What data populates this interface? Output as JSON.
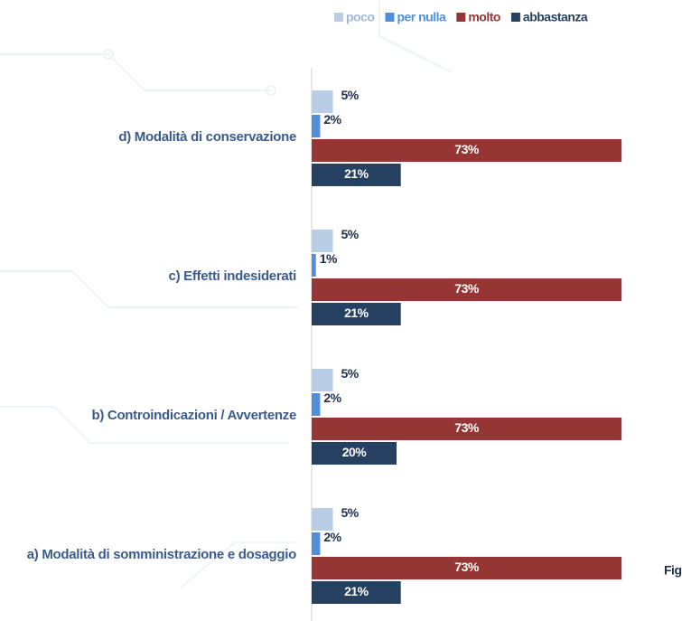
{
  "chart_data": {
    "type": "bar",
    "orientation": "horizontal",
    "categories": [
      "d) Modalità di conservazione",
      "c) Effetti indesiderati",
      "b) Controindicazioni /  Avvertenze",
      "a) Modalità di somministrazione e dosaggio"
    ],
    "series": [
      {
        "name": "poco",
        "color": "#b9cde5",
        "values": [
          5,
          5,
          5,
          5
        ],
        "value_labels": [
          "5%",
          "5%",
          "5%",
          "5%"
        ]
      },
      {
        "name": "per nulla",
        "color": "#4f8fdc",
        "values": [
          2,
          1,
          2,
          2
        ],
        "value_labels": [
          "2%",
          "1%",
          "2%",
          "2%"
        ]
      },
      {
        "name": "molto",
        "color": "#963634",
        "values": [
          73,
          73,
          73,
          73
        ],
        "value_labels": [
          "73%",
          "73%",
          "73%",
          "73%"
        ]
      },
      {
        "name": "abbastanza",
        "color": "#254061",
        "values": [
          21,
          21,
          20,
          21
        ],
        "value_labels": [
          "21%",
          "21%",
          "20%",
          "21%"
        ]
      }
    ],
    "annotation": "Fig"
  }
}
